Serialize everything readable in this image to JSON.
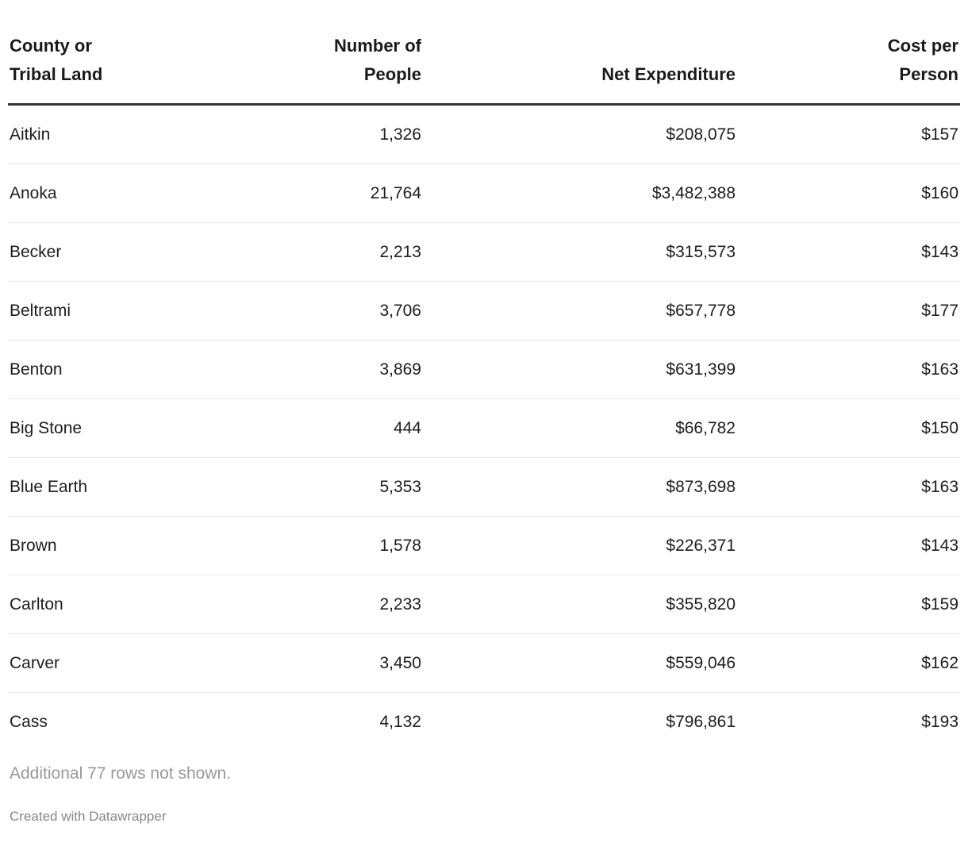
{
  "table": {
    "columns": [
      {
        "label": "County or\nTribal Land",
        "align": "left"
      },
      {
        "label": "Number of\nPeople",
        "align": "right"
      },
      {
        "label": "Net Expenditure",
        "align": "right"
      },
      {
        "label": "Cost per\nPerson",
        "align": "right"
      }
    ],
    "rows": [
      [
        "Aitkin",
        "1,326",
        "$208,075",
        "$157"
      ],
      [
        "Anoka",
        "21,764",
        "$3,482,388",
        "$160"
      ],
      [
        "Becker",
        "2,213",
        "$315,573",
        "$143"
      ],
      [
        "Beltrami",
        "3,706",
        "$657,778",
        "$177"
      ],
      [
        "Benton",
        "3,869",
        "$631,399",
        "$163"
      ],
      [
        "Big Stone",
        "444",
        "$66,782",
        "$150"
      ],
      [
        "Blue Earth",
        "5,353",
        "$873,698",
        "$163"
      ],
      [
        "Brown",
        "1,578",
        "$226,371",
        "$143"
      ],
      [
        "Carlton",
        "2,233",
        "$355,820",
        "$159"
      ],
      [
        "Carver",
        "3,450",
        "$559,046",
        "$162"
      ],
      [
        "Cass",
        "4,132",
        "$796,861",
        "$193"
      ]
    ]
  },
  "footer": {
    "note": "Additional 77 rows not shown.",
    "attribution": "Created with Datawrapper"
  },
  "colors": {
    "text": "#1d1d1d",
    "header_rule": "#333333",
    "row_separator": "#e8e8e8",
    "note_gray": "#999999",
    "attribution_gray": "#888888",
    "background": "#ffffff"
  },
  "chart_data": {
    "type": "table",
    "title": "",
    "columns": [
      "County or Tribal Land",
      "Number of People",
      "Net Expenditure",
      "Cost per Person"
    ],
    "rows": [
      [
        "Aitkin",
        1326,
        208075,
        157
      ],
      [
        "Anoka",
        21764,
        3482388,
        160
      ],
      [
        "Becker",
        2213,
        315573,
        143
      ],
      [
        "Beltrami",
        3706,
        657778,
        177
      ],
      [
        "Benton",
        3869,
        631399,
        163
      ],
      [
        "Big Stone",
        444,
        66782,
        150
      ],
      [
        "Blue Earth",
        5353,
        873698,
        163
      ],
      [
        "Brown",
        1578,
        226371,
        143
      ],
      [
        "Carlton",
        2233,
        355820,
        159
      ],
      [
        "Carver",
        3450,
        559046,
        162
      ],
      [
        "Cass",
        4132,
        796861,
        193
      ]
    ],
    "note": "Additional 77 rows not shown.",
    "attribution": "Created with Datawrapper"
  }
}
